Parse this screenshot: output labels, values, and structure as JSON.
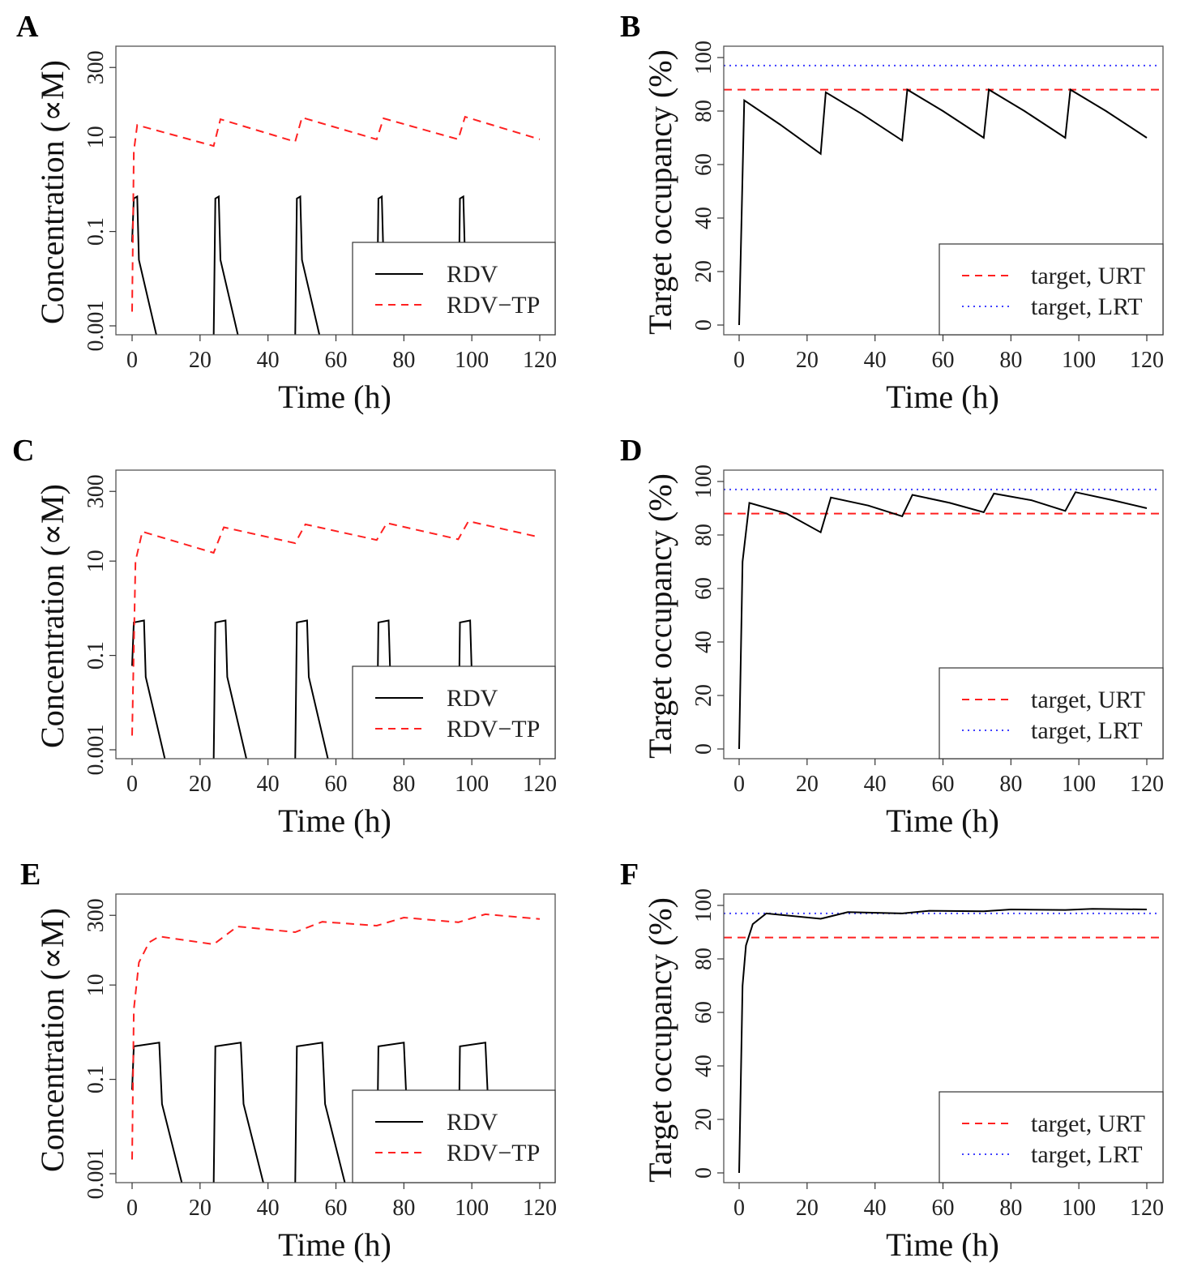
{
  "colors": {
    "rdv": "#000000",
    "rdv_tp": "#ff2020",
    "urt": "#ff2020",
    "lrt": "#4040ff"
  },
  "chart_data": [
    {
      "panel": "A",
      "type": "line",
      "yscale": "log",
      "xlabel": "Time (h)",
      "ylabel": "Concentration (∝M)",
      "xlim": [
        -5,
        125
      ],
      "ylim": [
        0.00065,
        830
      ],
      "xticks": [
        "0",
        "20",
        "40",
        "60",
        "80",
        "100",
        "120"
      ],
      "yticks": [
        "0.001",
        "0.1",
        "10",
        "300"
      ],
      "legend": {
        "placement": "bottom-right",
        "entries": [
          "RDV",
          "RDV−TP"
        ]
      },
      "series": [
        {
          "name": "RDV",
          "style": "solid",
          "x": [
            0,
            0.5,
            1.5,
            2,
            7.5,
            null,
            24,
            24.5,
            25.5,
            26,
            31.5,
            null,
            48,
            48.5,
            49.5,
            50,
            55.5,
            null,
            72,
            72.5,
            73.5,
            74,
            79.5,
            null,
            96,
            96.5,
            97.5,
            98,
            103.5
          ],
          "y": [
            0.06,
            0.5,
            0.55,
            0.025,
            0.0005,
            null,
            0.0005,
            0.5,
            0.55,
            0.025,
            0.0005,
            null,
            0.0005,
            0.5,
            0.55,
            0.025,
            0.0005,
            null,
            0.0005,
            0.5,
            0.55,
            0.025,
            0.0005,
            null,
            0.0005,
            0.5,
            0.55,
            0.025,
            0.0005
          ]
        },
        {
          "name": "RDV−TP",
          "style": "dashed",
          "x": [
            0,
            0.5,
            1.5,
            24,
            26,
            48,
            50,
            72,
            74,
            96,
            98,
            120
          ],
          "y": [
            0.002,
            5,
            18,
            6.5,
            24,
            8,
            26,
            9,
            25,
            9,
            27,
            9
          ]
        }
      ]
    },
    {
      "panel": "B",
      "type": "line",
      "yscale": "linear",
      "xlabel": "Time (h)",
      "ylabel": "Target occupancy (%)",
      "xlim": [
        -5,
        125
      ],
      "ylim": [
        -3.6,
        104.2
      ],
      "xticks": [
        "0",
        "20",
        "40",
        "60",
        "80",
        "100",
        "120"
      ],
      "yticks": [
        "0",
        "20",
        "40",
        "60",
        "80",
        "100"
      ],
      "legend": {
        "placement": "bottom-right",
        "entries": [
          "target, URT",
          "target, LRT"
        ]
      },
      "hlines": {
        "URT": 88,
        "LRT": 97
      },
      "series": [
        {
          "name": "occupancy",
          "style": "solid",
          "x": [
            0,
            1.5,
            12,
            24,
            25.5,
            36,
            48,
            49.5,
            60,
            72,
            73.5,
            84,
            96,
            97.5,
            108,
            120
          ],
          "y": [
            0,
            84,
            75,
            64,
            87,
            79,
            69,
            88,
            80,
            70,
            88,
            80,
            70,
            88,
            80,
            70
          ]
        }
      ]
    },
    {
      "panel": "C",
      "type": "line",
      "yscale": "log",
      "xlabel": "Time (h)",
      "ylabel": "Concentration (∝M)",
      "xlim": [
        -5,
        125
      ],
      "ylim": [
        0.00065,
        830
      ],
      "xticks": [
        "0",
        "20",
        "40",
        "60",
        "80",
        "100",
        "120"
      ],
      "yticks": [
        "0.001",
        "0.1",
        "10",
        "300"
      ],
      "legend": {
        "placement": "bottom-right",
        "entries": [
          "RDV",
          "RDV−TP"
        ]
      },
      "series": [
        {
          "name": "RDV",
          "style": "solid",
          "x": [
            0,
            0.5,
            3.5,
            4,
            10,
            null,
            24,
            24.5,
            27.5,
            28,
            34,
            null,
            48,
            48.5,
            51.5,
            52,
            58,
            null,
            72,
            72.5,
            75.5,
            76,
            82,
            null,
            96,
            96.5,
            99.5,
            100,
            106
          ],
          "y": [
            0.06,
            0.5,
            0.55,
            0.035,
            0.0005,
            null,
            0.0005,
            0.5,
            0.55,
            0.035,
            0.0005,
            null,
            0.0005,
            0.5,
            0.55,
            0.035,
            0.0005,
            null,
            0.0005,
            0.5,
            0.55,
            0.035,
            0.0005,
            null,
            0.0005,
            0.5,
            0.55,
            0.035,
            0.0005
          ]
        },
        {
          "name": "RDV−TP",
          "style": "dashed",
          "x": [
            0,
            1,
            3,
            24,
            27,
            48,
            51,
            72,
            75,
            96,
            99,
            120
          ],
          "y": [
            0.002,
            10,
            42,
            15,
            52,
            24,
            60,
            28,
            64,
            29,
            70,
            32
          ]
        }
      ]
    },
    {
      "panel": "D",
      "type": "line",
      "yscale": "linear",
      "xlabel": "Time (h)",
      "ylabel": "Target occupancy (%)",
      "xlim": [
        -5,
        125
      ],
      "ylim": [
        -3.6,
        104.2
      ],
      "xticks": [
        "0",
        "20",
        "40",
        "60",
        "80",
        "100",
        "120"
      ],
      "yticks": [
        "0",
        "20",
        "40",
        "60",
        "80",
        "100"
      ],
      "legend": {
        "placement": "bottom-right",
        "entries": [
          "target, URT",
          "target, LRT"
        ]
      },
      "hlines": {
        "URT": 88,
        "LRT": 97
      },
      "series": [
        {
          "name": "occupancy",
          "style": "solid",
          "x": [
            0,
            1,
            3,
            14,
            24,
            27,
            38,
            48,
            51,
            62,
            72,
            75,
            86,
            96,
            99,
            110,
            120
          ],
          "y": [
            0,
            70,
            92,
            88,
            81,
            94,
            91,
            87,
            95,
            92,
            88.5,
            95.5,
            93,
            89,
            96,
            93,
            90
          ]
        }
      ]
    },
    {
      "panel": "E",
      "type": "line",
      "yscale": "log",
      "xlabel": "Time (h)",
      "ylabel": "Concentration (∝M)",
      "xlim": [
        -5,
        125
      ],
      "ylim": [
        0.00065,
        830
      ],
      "xticks": [
        "0",
        "20",
        "40",
        "60",
        "80",
        "100",
        "120"
      ],
      "yticks": [
        "0.001",
        "0.1",
        "10",
        "300"
      ],
      "legend": {
        "placement": "bottom-right",
        "entries": [
          "RDV",
          "RDV−TP"
        ]
      },
      "series": [
        {
          "name": "RDV",
          "style": "solid",
          "x": [
            0,
            0.5,
            8,
            8.8,
            15,
            null,
            24,
            24.5,
            32,
            32.8,
            39,
            null,
            48,
            48.5,
            56,
            56.8,
            63,
            null,
            72,
            72.5,
            80,
            80.8,
            87,
            null,
            96,
            96.5,
            104,
            104.8,
            111
          ],
          "y": [
            0.06,
            0.5,
            0.6,
            0.03,
            0.0005,
            null,
            0.0005,
            0.5,
            0.6,
            0.03,
            0.0005,
            null,
            0.0005,
            0.5,
            0.6,
            0.03,
            0.0005,
            null,
            0.0005,
            0.5,
            0.6,
            0.03,
            0.0005,
            null,
            0.0005,
            0.5,
            0.6,
            0.03,
            0.0005
          ]
        },
        {
          "name": "RDV−TP",
          "style": "dashed",
          "x": [
            0,
            0.5,
            2,
            5,
            8,
            24,
            31,
            48,
            56,
            72,
            80,
            96,
            104,
            120
          ],
          "y": [
            0.002,
            3,
            30,
            80,
            107,
            73,
            174,
            132,
            219,
            181,
            269,
            214,
            316,
            250
          ]
        }
      ]
    },
    {
      "panel": "F",
      "type": "line",
      "yscale": "linear",
      "xlabel": "Time (h)",
      "ylabel": "Target occupancy (%)",
      "xlim": [
        -5,
        125
      ],
      "ylim": [
        -3.6,
        104.2
      ],
      "xticks": [
        "0",
        "20",
        "40",
        "60",
        "80",
        "100",
        "120"
      ],
      "yticks": [
        "0",
        "20",
        "40",
        "60",
        "80",
        "100"
      ],
      "legend": {
        "placement": "bottom-right",
        "entries": [
          "target, URT",
          "target, LRT"
        ]
      },
      "hlines": {
        "URT": 88,
        "LRT": 97
      },
      "series": [
        {
          "name": "occupancy",
          "style": "solid",
          "x": [
            0,
            1,
            2,
            4,
            8,
            24,
            32,
            48,
            56,
            72,
            80,
            96,
            104,
            120
          ],
          "y": [
            0,
            70,
            85,
            93,
            97,
            95,
            97.5,
            97,
            98,
            97.8,
            98.5,
            98.3,
            98.7,
            98.5
          ]
        }
      ]
    }
  ]
}
